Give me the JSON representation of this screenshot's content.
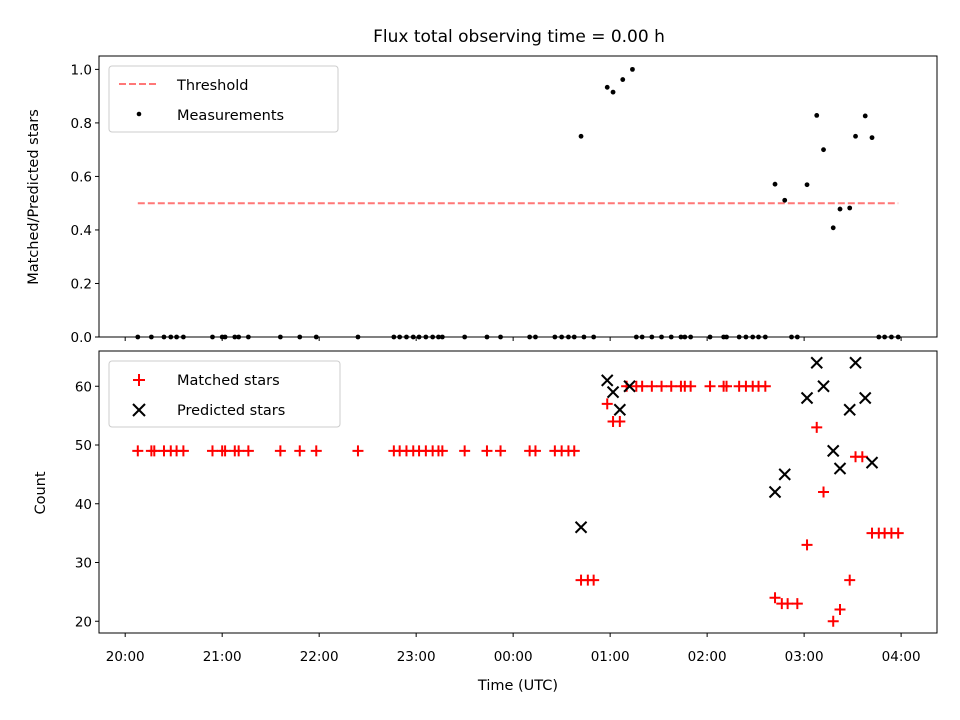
{
  "chart_data": [
    {
      "type": "scatter",
      "title": "Flux total observing time = 0.00 h",
      "xlabel": "",
      "ylabel": "Matched/Predicted stars",
      "xlim": [
        -0.27,
        8.37
      ],
      "ylim": [
        0,
        1.05
      ],
      "yticks": [
        0.0,
        0.2,
        0.4,
        0.6,
        0.8,
        1.0
      ],
      "ytick_labels": [
        "0.0",
        "0.2",
        "0.4",
        "0.6",
        "0.8",
        "1.0"
      ],
      "legend_position": "upper-left",
      "series": [
        {
          "name": "Threshold",
          "kind": "dashed-line",
          "color": "#ff7777",
          "x": [
            0.13,
            7.97
          ],
          "y": [
            0.5,
            0.5
          ]
        },
        {
          "name": "Measurements",
          "kind": "dots",
          "color": "#000000",
          "x": [
            0.13,
            0.27,
            0.4,
            0.47,
            0.53,
            0.6,
            0.9,
            1.0,
            1.03,
            1.13,
            1.17,
            1.27,
            1.6,
            1.8,
            1.97,
            2.4,
            2.77,
            2.83,
            2.9,
            2.97,
            3.03,
            3.1,
            3.17,
            3.23,
            3.27,
            3.5,
            3.73,
            3.87,
            4.17,
            4.23,
            4.43,
            4.5,
            4.57,
            4.63,
            4.73,
            4.83,
            4.7,
            4.97,
            5.03,
            5.13,
            5.23,
            5.27,
            5.33,
            5.43,
            5.53,
            5.63,
            5.73,
            5.77,
            5.83,
            6.03,
            6.17,
            6.2,
            6.33,
            6.4,
            6.47,
            6.53,
            6.6,
            6.7,
            6.8,
            6.87,
            6.93,
            7.03,
            7.13,
            7.2,
            7.3,
            7.37,
            7.47,
            7.53,
            7.63,
            7.7,
            7.77,
            7.83,
            7.9,
            7.97
          ],
          "y": [
            0,
            0,
            0,
            0,
            0,
            0,
            0,
            0,
            0,
            0,
            0,
            0,
            0,
            0,
            0,
            0,
            0,
            0,
            0,
            0,
            0,
            0,
            0,
            0,
            0,
            0,
            0,
            0,
            0,
            0,
            0,
            0,
            0,
            0,
            0,
            0,
            0.75,
            0.933,
            0.915,
            0.962,
            1.0,
            0,
            0,
            0,
            0,
            0,
            0,
            0,
            0,
            0,
            0,
            0,
            0,
            0,
            0,
            0,
            0,
            0.571,
            0.511,
            0,
            0,
            0.569,
            0.828,
            0.7,
            0.408,
            0.478,
            0.482,
            0.75,
            0.826,
            0.745,
            0,
            0,
            0,
            0
          ]
        }
      ]
    },
    {
      "type": "scatter",
      "title": "",
      "xlabel": "Time (UTC)",
      "ylabel": "Count",
      "xlim": [
        -0.27,
        8.37
      ],
      "ylim": [
        18,
        66
      ],
      "yticks": [
        20,
        30,
        40,
        50,
        60
      ],
      "ytick_labels": [
        "20",
        "30",
        "40",
        "50",
        "60"
      ],
      "xticks": [
        0,
        1,
        2,
        3,
        4,
        5,
        6,
        7,
        8
      ],
      "xtick_labels": [
        "20:00",
        "21:00",
        "22:00",
        "23:00",
        "00:00",
        "01:00",
        "02:00",
        "03:00",
        "04:00"
      ],
      "legend_position": "upper-left",
      "series": [
        {
          "name": "Matched stars",
          "kind": "plus",
          "color": "#ff0000",
          "x": [
            0.13,
            0.27,
            0.3,
            0.4,
            0.47,
            0.53,
            0.6,
            0.9,
            1.0,
            1.03,
            1.13,
            1.17,
            1.27,
            1.6,
            1.8,
            1.97,
            2.4,
            2.77,
            2.83,
            2.9,
            2.97,
            3.03,
            3.1,
            3.17,
            3.23,
            3.27,
            3.5,
            3.73,
            3.87,
            4.17,
            4.23,
            4.43,
            4.5,
            4.57,
            4.63,
            4.7,
            4.77,
            4.83,
            4.97,
            5.03,
            5.1,
            5.17,
            5.27,
            5.33,
            5.43,
            5.53,
            5.63,
            5.73,
            5.77,
            5.83,
            6.03,
            6.17,
            6.2,
            6.33,
            6.4,
            6.47,
            6.53,
            6.6,
            6.7,
            6.77,
            6.83,
            6.93,
            7.03,
            7.13,
            7.2,
            7.3,
            7.37,
            7.47,
            7.53,
            7.6,
            7.7,
            7.77,
            7.83,
            7.9,
            7.97
          ],
          "y": [
            49,
            49,
            49,
            49,
            49,
            49,
            49,
            49,
            49,
            49,
            49,
            49,
            49,
            49,
            49,
            49,
            49,
            49,
            49,
            49,
            49,
            49,
            49,
            49,
            49,
            49,
            49,
            49,
            49,
            49,
            49,
            49,
            49,
            49,
            49,
            27,
            27,
            27,
            57,
            54,
            54,
            60,
            60,
            60,
            60,
            60,
            60,
            60,
            60,
            60,
            60,
            60,
            60,
            60,
            60,
            60,
            60,
            60,
            24,
            23,
            23,
            23,
            33,
            53,
            42,
            20,
            22,
            27,
            48,
            48,
            35,
            35,
            35,
            35,
            35
          ]
        },
        {
          "name": "Predicted stars",
          "kind": "x",
          "color": "#000000",
          "x": [
            4.7,
            4.97,
            5.03,
            5.1,
            5.2,
            6.7,
            6.8,
            7.03,
            7.13,
            7.2,
            7.3,
            7.37,
            7.47,
            7.53,
            7.63,
            7.7
          ],
          "y": [
            36,
            61,
            59,
            56,
            60,
            42,
            45,
            58,
            64,
            60,
            49,
            46,
            56,
            64,
            58,
            47
          ]
        }
      ]
    }
  ]
}
